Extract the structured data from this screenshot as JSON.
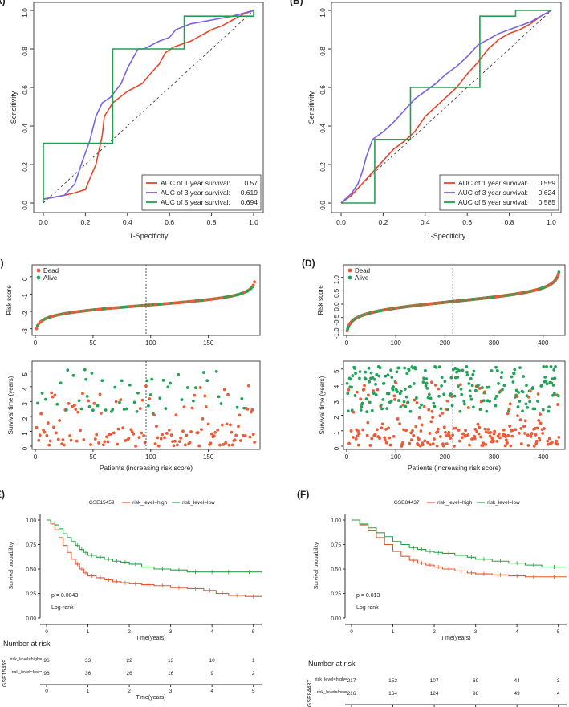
{
  "colors": {
    "red": "#e8462b",
    "purple": "#7a62e8",
    "green": "#22a052",
    "dot_red": "#ec5a36",
    "dot_green": "#21a357",
    "km_red": "#e8552f",
    "km_green": "#2e9f48",
    "axis": "#222222"
  },
  "chart_data": [
    {
      "id": "A",
      "panel_label": "(A)",
      "type": "line",
      "xlabel": "1-Specificity",
      "ylabel": "Sensitivity",
      "xlim": [
        0,
        1
      ],
      "ylim": [
        0,
        1
      ],
      "x_ticks": [
        "0.0",
        "0.2",
        "0.4",
        "0.6",
        "0.8",
        "1.0"
      ],
      "y_ticks": [
        "0.0",
        "0.2",
        "0.4",
        "0.6",
        "0.8",
        "1.0"
      ],
      "legend_position": "bottom-right",
      "series": [
        {
          "name": "AUC of 1 year survival:",
          "auc": "0.57",
          "color": "red",
          "x": [
            0,
            0.05,
            0.1,
            0.14,
            0.2,
            0.23,
            0.25,
            0.28,
            0.29,
            0.33,
            0.4,
            0.47,
            0.5,
            0.55,
            0.58,
            0.62,
            0.7,
            0.75,
            0.8,
            0.85,
            0.9,
            0.95,
            1.0
          ],
          "y": [
            0.02,
            0.03,
            0.04,
            0.05,
            0.07,
            0.15,
            0.2,
            0.35,
            0.45,
            0.52,
            0.58,
            0.62,
            0.66,
            0.72,
            0.78,
            0.81,
            0.84,
            0.87,
            0.9,
            0.92,
            0.95,
            0.98,
            1.0
          ]
        },
        {
          "name": "AUC of 3 year survival:",
          "auc": "0.619",
          "color": "purple",
          "x": [
            0,
            0.05,
            0.1,
            0.15,
            0.18,
            0.22,
            0.25,
            0.28,
            0.32,
            0.37,
            0.4,
            0.45,
            0.48,
            0.55,
            0.6,
            0.63,
            0.7,
            0.8,
            0.9,
            1.0
          ],
          "y": [
            0.02,
            0.03,
            0.04,
            0.1,
            0.2,
            0.32,
            0.45,
            0.52,
            0.55,
            0.62,
            0.7,
            0.8,
            0.8,
            0.84,
            0.86,
            0.9,
            0.93,
            0.95,
            0.97,
            1.0
          ]
        },
        {
          "name": "AUC of 5 year survival:",
          "auc": "0.694",
          "color": "green",
          "x": [
            0,
            0,
            0.33,
            0.33,
            0.67,
            0.67,
            1.0,
            1.0
          ],
          "y": [
            0,
            0.31,
            0.31,
            0.8,
            0.8,
            0.97,
            0.97,
            1.0
          ]
        }
      ]
    },
    {
      "id": "B",
      "panel_label": "(B)",
      "type": "line",
      "xlabel": "1-Specificity",
      "ylabel": "Sensitivity",
      "xlim": [
        0,
        1
      ],
      "ylim": [
        0,
        1
      ],
      "x_ticks": [
        "0.0",
        "0.2",
        "0.4",
        "0.6",
        "0.8",
        "1.0"
      ],
      "y_ticks": [
        "0.0",
        "0.2",
        "0.4",
        "0.6",
        "0.8",
        "1.0"
      ],
      "legend_position": "bottom-right",
      "series": [
        {
          "name": "AUC of 1 year survival:",
          "auc": "0.559",
          "color": "red",
          "x": [
            0,
            0.05,
            0.1,
            0.15,
            0.2,
            0.25,
            0.3,
            0.35,
            0.4,
            0.45,
            0.5,
            0.55,
            0.6,
            0.65,
            0.7,
            0.75,
            0.8,
            0.85,
            0.9,
            0.95,
            1.0
          ],
          "y": [
            0.0,
            0.04,
            0.1,
            0.16,
            0.22,
            0.28,
            0.32,
            0.37,
            0.45,
            0.5,
            0.55,
            0.6,
            0.67,
            0.73,
            0.8,
            0.85,
            0.88,
            0.9,
            0.93,
            0.97,
            1.0
          ]
        },
        {
          "name": "AUC of 3 year survival:",
          "auc": "0.624",
          "color": "purple",
          "x": [
            0,
            0.05,
            0.08,
            0.1,
            0.12,
            0.15,
            0.2,
            0.25,
            0.3,
            0.35,
            0.4,
            0.45,
            0.5,
            0.55,
            0.6,
            0.65,
            0.7,
            0.75,
            0.8,
            0.85,
            0.9,
            0.95,
            1.0
          ],
          "y": [
            0.0,
            0.05,
            0.1,
            0.16,
            0.24,
            0.33,
            0.37,
            0.42,
            0.48,
            0.54,
            0.58,
            0.62,
            0.67,
            0.71,
            0.76,
            0.82,
            0.85,
            0.88,
            0.9,
            0.92,
            0.94,
            0.97,
            1.0
          ]
        },
        {
          "name": "AUC of 5 year survival:",
          "auc": "0.585",
          "color": "green",
          "x": [
            0,
            0.16,
            0.16,
            0.33,
            0.33,
            0.5,
            0.5,
            0.66,
            0.66,
            0.83,
            0.83,
            1.0
          ],
          "y": [
            0,
            0,
            0.33,
            0.33,
            0.6,
            0.6,
            0.6,
            0.6,
            0.97,
            0.97,
            1.0,
            1.0
          ]
        }
      ]
    },
    {
      "id": "C1",
      "panel_label": "(C)",
      "type": "scatter",
      "ylabel": "Risk score",
      "n": 190,
      "cutoff": 96,
      "xlim": [
        0,
        192
      ],
      "ylim": [
        -3.2,
        0.5
      ],
      "x_ticks": [
        "0",
        "50",
        "100",
        "150"
      ],
      "y_ticks": [
        "-3",
        "-2",
        "-1",
        "0"
      ],
      "legend": [
        "Dead",
        "Alive"
      ],
      "score_curve": {
        "start": -3.0,
        "end": -0.3,
        "spread": 1.4
      }
    },
    {
      "id": "C2",
      "type": "scatter",
      "xlabel": "Patients (increasing risk score)",
      "ylabel": "Survival time (years)",
      "n": 190,
      "cutoff": 96,
      "xlim": [
        0,
        192
      ],
      "ylim": [
        0,
        5.5
      ],
      "x_ticks": [
        "0",
        "50",
        "100",
        "150"
      ],
      "y_ticks": [
        "0",
        "1",
        "2",
        "3",
        "4",
        "5"
      ],
      "alive_fraction": 0.32
    },
    {
      "id": "D1",
      "panel_label": "(D)",
      "type": "scatter",
      "ylabel": "Risk score",
      "n": 432,
      "cutoff": 216,
      "xlim": [
        0,
        438
      ],
      "ylim": [
        -1.05,
        1.35
      ],
      "x_ticks": [
        "0",
        "100",
        "200",
        "300",
        "400"
      ],
      "y_ticks": [
        "-1.0",
        "-0.5",
        "0.0",
        "0.5",
        "1.0"
      ],
      "legend": [
        "Dead",
        "Alive"
      ],
      "score_curve": {
        "start": -1.0,
        "end": 1.2,
        "spread": 0.55
      }
    },
    {
      "id": "D2",
      "type": "scatter",
      "xlabel": "Patients (increasing risk score)",
      "ylabel": "Survival time (years)",
      "n": 432,
      "cutoff": 216,
      "xlim": [
        0,
        438
      ],
      "ylim": [
        0,
        5.3
      ],
      "x_ticks": [
        "0",
        "100",
        "200",
        "300",
        "400"
      ],
      "y_ticks": [
        "0",
        "1",
        "2",
        "3",
        "4",
        "5"
      ],
      "alive_fraction": 0.48
    },
    {
      "id": "E",
      "panel_label": "(E)",
      "type": "line",
      "title": "GSE15459",
      "xlabel": "Time(years)",
      "ylabel": "Survival probability",
      "xlim": [
        0,
        5.2
      ],
      "ylim": [
        0,
        1
      ],
      "x_ticks": [
        "0",
        "1",
        "2",
        "3",
        "4",
        "5"
      ],
      "y_ticks": [
        "0.00",
        "0.25",
        "0.50",
        "0.75",
        "1.00"
      ],
      "pvalue": "p = 0.0043",
      "test": "Log-rank",
      "series": [
        {
          "name": "risk_level=high",
          "color": "red",
          "x": [
            0,
            0.1,
            0.2,
            0.3,
            0.4,
            0.5,
            0.6,
            0.7,
            0.8,
            0.9,
            1.0,
            1.2,
            1.4,
            1.6,
            1.8,
            2.0,
            2.3,
            2.6,
            3.0,
            3.4,
            3.8,
            4.1,
            4.4,
            4.8,
            5.2
          ],
          "y": [
            1.0,
            0.96,
            0.9,
            0.82,
            0.74,
            0.67,
            0.6,
            0.55,
            0.5,
            0.46,
            0.43,
            0.41,
            0.39,
            0.37,
            0.36,
            0.35,
            0.34,
            0.33,
            0.31,
            0.3,
            0.28,
            0.25,
            0.23,
            0.22,
            0.22
          ]
        },
        {
          "name": "risk_level=low",
          "color": "green",
          "x": [
            0,
            0.1,
            0.2,
            0.3,
            0.4,
            0.5,
            0.6,
            0.7,
            0.8,
            0.9,
            1.0,
            1.2,
            1.4,
            1.6,
            1.8,
            2.0,
            2.3,
            2.6,
            3.0,
            3.4,
            3.8,
            4.2,
            4.6,
            5.2
          ],
          "y": [
            1.0,
            0.98,
            0.95,
            0.91,
            0.86,
            0.82,
            0.78,
            0.74,
            0.7,
            0.67,
            0.64,
            0.62,
            0.6,
            0.58,
            0.57,
            0.55,
            0.52,
            0.5,
            0.49,
            0.47,
            0.47,
            0.47,
            0.47,
            0.47
          ]
        }
      ],
      "risk_table": {
        "heading": "Number at risk",
        "dataset": "GSE15459",
        "rows": [
          {
            "label": "risk_level=high",
            "color": "red",
            "values": [
              "96",
              "33",
              "22",
              "13",
              "10",
              "1"
            ]
          },
          {
            "label": "risk_level=low",
            "color": "green",
            "values": [
              "96",
              "36",
              "26",
              "16",
              "9",
              "2"
            ]
          }
        ]
      }
    },
    {
      "id": "F",
      "panel_label": "(F)",
      "type": "line",
      "title": "GSE84437",
      "xlabel": "Time(years)",
      "ylabel": "Survival probability",
      "xlim": [
        0,
        5.2
      ],
      "ylim": [
        0,
        1
      ],
      "x_ticks": [
        "0",
        "1",
        "2",
        "3",
        "4",
        "5"
      ],
      "y_ticks": [
        "0.00",
        "0.25",
        "0.50",
        "0.75",
        "1.00"
      ],
      "pvalue": "p = 0.013",
      "test": "Log-rank",
      "series": [
        {
          "name": "risk_level=high",
          "color": "red",
          "x": [
            0,
            0.2,
            0.4,
            0.6,
            0.8,
            1.0,
            1.2,
            1.4,
            1.6,
            1.8,
            2.0,
            2.2,
            2.5,
            2.8,
            3.0,
            3.4,
            3.8,
            4.2,
            4.6,
            5.2
          ],
          "y": [
            1.0,
            0.95,
            0.89,
            0.82,
            0.75,
            0.68,
            0.63,
            0.59,
            0.56,
            0.54,
            0.52,
            0.5,
            0.48,
            0.46,
            0.45,
            0.44,
            0.43,
            0.42,
            0.42,
            0.42
          ]
        },
        {
          "name": "risk_level=low",
          "color": "green",
          "x": [
            0,
            0.2,
            0.4,
            0.6,
            0.8,
            1.0,
            1.2,
            1.4,
            1.6,
            1.8,
            2.0,
            2.2,
            2.5,
            2.8,
            3.0,
            3.4,
            3.8,
            4.2,
            4.6,
            5.2
          ],
          "y": [
            1.0,
            0.96,
            0.92,
            0.87,
            0.83,
            0.78,
            0.75,
            0.72,
            0.7,
            0.68,
            0.67,
            0.66,
            0.64,
            0.62,
            0.6,
            0.58,
            0.56,
            0.54,
            0.52,
            0.52
          ]
        }
      ],
      "risk_table": {
        "heading": "Number at risk",
        "dataset": "GSE84437",
        "rows": [
          {
            "label": "risk_level=high",
            "color": "red",
            "values": [
              "217",
              "152",
              "107",
              "69",
              "44",
              "3"
            ]
          },
          {
            "label": "risk_level=low",
            "color": "green",
            "values": [
              "216",
              "164",
              "124",
              "98",
              "49",
              "4"
            ]
          }
        ]
      }
    }
  ]
}
